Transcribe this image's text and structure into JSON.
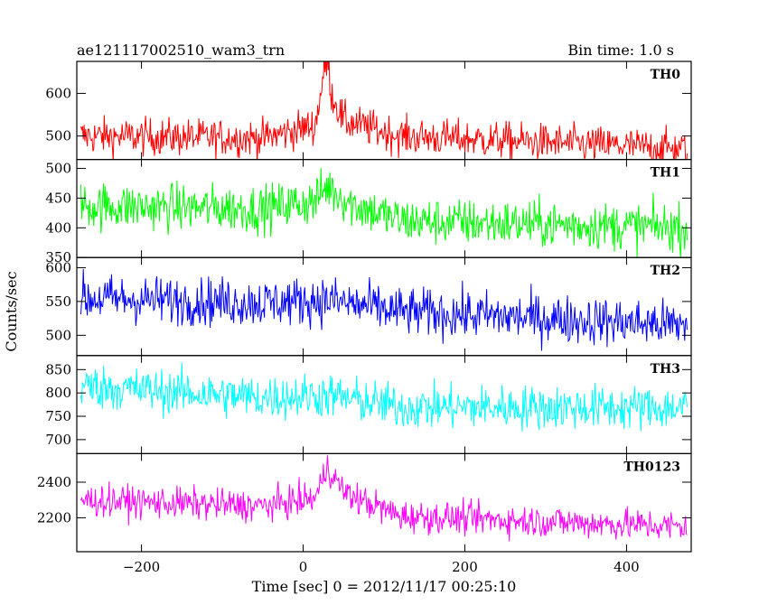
{
  "header": {
    "left_title": "ae121117002510_wam3_trn",
    "right_title": "Bin time: 1.0 s"
  },
  "chart_data": {
    "type": "line",
    "xlabel": "Time [sec] 0 = 2012/11/17 00:25:10",
    "ylabel": "Counts/sec",
    "xlim": [
      -280,
      480
    ],
    "x_ticks": [
      -200,
      0,
      200,
      400
    ],
    "x_tick_labels": [
      "−200",
      "0",
      "200",
      "400"
    ],
    "bin_time_s": 1.0,
    "panels": [
      {
        "name": "TH0",
        "color": "#ff0000",
        "ylim": [
          445,
          675
        ],
        "y_ticks": [
          500,
          600
        ],
        "y_tick_labels": [
          "500",
          "600"
        ],
        "segments": [
          {
            "t": -275,
            "mean": 500
          },
          {
            "t": -50,
            "mean": 495
          },
          {
            "t": 15,
            "mean": 525
          },
          {
            "t": 25,
            "mean": 640
          },
          {
            "t": 30,
            "mean": 680
          },
          {
            "t": 35,
            "mean": 600
          },
          {
            "t": 50,
            "mean": 535
          },
          {
            "t": 120,
            "mean": 500
          },
          {
            "t": 475,
            "mean": 470
          }
        ],
        "noise": 22
      },
      {
        "name": "TH1",
        "color": "#00ff00",
        "ylim": [
          350,
          515
        ],
        "y_ticks": [
          350,
          400,
          450,
          500
        ],
        "y_tick_labels": [
          "350",
          "400",
          "450",
          "500"
        ],
        "segments": [
          {
            "t": -275,
            "mean": 437
          },
          {
            "t": -50,
            "mean": 432
          },
          {
            "t": 15,
            "mean": 445
          },
          {
            "t": 30,
            "mean": 470
          },
          {
            "t": 60,
            "mean": 440
          },
          {
            "t": 120,
            "mean": 412
          },
          {
            "t": 475,
            "mean": 400
          }
        ],
        "noise": 20
      },
      {
        "name": "TH2",
        "color": "#0000ff",
        "ylim": [
          470,
          615
        ],
        "y_ticks": [
          500,
          550,
          600
        ],
        "y_tick_labels": [
          "500",
          "550",
          "600"
        ],
        "segments": [
          {
            "t": -275,
            "mean": 555
          },
          {
            "t": -50,
            "mean": 548
          },
          {
            "t": 30,
            "mean": 552
          },
          {
            "t": 120,
            "mean": 535
          },
          {
            "t": 475,
            "mean": 515
          }
        ],
        "noise": 18
      },
      {
        "name": "TH3",
        "color": "#00ffff",
        "ylim": [
          670,
          880
        ],
        "y_ticks": [
          700,
          750,
          800,
          850
        ],
        "y_tick_labels": [
          "700",
          "750",
          "800",
          "850"
        ],
        "segments": [
          {
            "t": -275,
            "mean": 815
          },
          {
            "t": -50,
            "mean": 790
          },
          {
            "t": 30,
            "mean": 795
          },
          {
            "t": 120,
            "mean": 770
          },
          {
            "t": 475,
            "mean": 768
          }
        ],
        "noise": 24
      },
      {
        "name": "TH0123",
        "color": "#ff00ff",
        "ylim": [
          2010,
          2560
        ],
        "y_ticks": [
          2200,
          2400
        ],
        "y_tick_labels": [
          "2200",
          "2400"
        ],
        "segments": [
          {
            "t": -275,
            "mean": 2300
          },
          {
            "t": -50,
            "mean": 2265
          },
          {
            "t": 15,
            "mean": 2310
          },
          {
            "t": 25,
            "mean": 2420
          },
          {
            "t": 30,
            "mean": 2500
          },
          {
            "t": 38,
            "mean": 2420
          },
          {
            "t": 55,
            "mean": 2330
          },
          {
            "t": 120,
            "mean": 2210
          },
          {
            "t": 475,
            "mean": 2150
          }
        ],
        "noise": 45
      }
    ]
  }
}
